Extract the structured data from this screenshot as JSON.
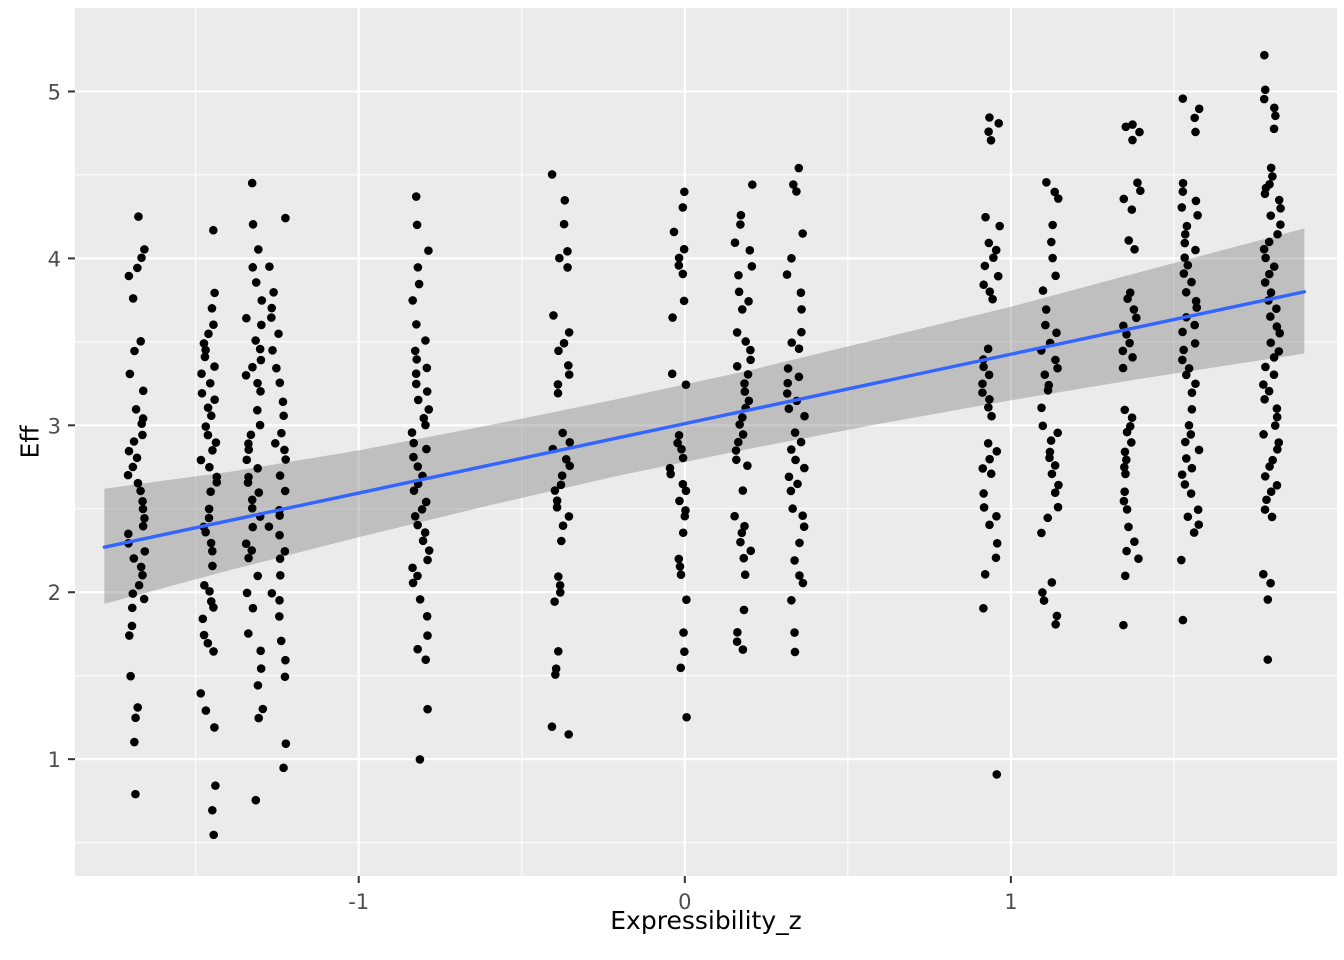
{
  "chart_data": {
    "type": "scatter",
    "title": "",
    "xlabel": "Expressibility_z",
    "ylabel": "Eff",
    "xlim": [
      -1.87,
      2.0
    ],
    "ylim": [
      0.3,
      5.5
    ],
    "xticks": [
      -1,
      0,
      1
    ],
    "xtick_labels": [
      "-1",
      "0",
      "1"
    ],
    "yticks": [
      1,
      2,
      3,
      4,
      5
    ],
    "ytick_labels": [
      "1",
      "2",
      "3",
      "4",
      "5"
    ],
    "xminor": [
      -1.5,
      -0.5,
      0.5,
      1.5
    ],
    "yminor": [
      0.5,
      1.5,
      2.5,
      3.5,
      4.5
    ],
    "grid": true,
    "legend": "none",
    "panel_bg": "#EBEBEB",
    "grid_color": "#FFFFFF",
    "point_color": "#000000",
    "line_color": "#3366FF",
    "band_color": "rgba(125,125,125,0.40)",
    "tick_color": "#333333",
    "tick_label_color": "#4D4D4D",
    "regression_line": {
      "x": [
        -1.78,
        0.0,
        1.9
      ],
      "y": [
        2.27,
        3.01,
        3.8
      ]
    },
    "confidence_band": [
      [
        -1.78,
        1.93,
        2.62
      ],
      [
        -1.4,
        2.13,
        2.72
      ],
      [
        -1.0,
        2.33,
        2.85
      ],
      [
        -0.6,
        2.52,
        3.0
      ],
      [
        -0.2,
        2.7,
        3.16
      ],
      [
        0.2,
        2.86,
        3.33
      ],
      [
        0.6,
        3.01,
        3.52
      ],
      [
        1.0,
        3.15,
        3.71
      ],
      [
        1.4,
        3.28,
        3.92
      ],
      [
        1.9,
        3.43,
        4.18
      ]
    ],
    "columns": [
      {
        "x": -1.68,
        "ys": [
          4.25,
          4.05,
          4.0,
          3.95,
          3.9,
          3.75,
          3.5,
          3.45,
          3.3,
          3.2,
          3.1,
          3.05,
          3.0,
          2.95,
          2.9,
          2.85,
          2.8,
          2.75,
          2.7,
          2.65,
          2.6,
          2.55,
          2.5,
          2.45,
          2.4,
          2.35,
          2.3,
          2.25,
          2.2,
          2.15,
          2.1,
          2.05,
          2.0,
          1.95,
          1.9,
          1.8,
          1.75,
          1.5,
          1.3,
          1.25,
          1.1,
          0.8
        ]
      },
      {
        "x": -1.46,
        "ys": [
          4.17,
          3.8,
          3.7,
          3.6,
          3.55,
          3.5,
          3.45,
          3.4,
          3.35,
          3.3,
          3.25,
          3.2,
          3.15,
          3.1,
          3.05,
          3.0,
          2.95,
          2.9,
          2.85,
          2.8,
          2.75,
          2.7,
          2.65,
          2.6,
          2.5,
          2.45,
          2.4,
          2.35,
          2.3,
          2.25,
          2.15,
          2.05,
          2.0,
          1.95,
          1.9,
          1.85,
          1.75,
          1.7,
          1.65,
          1.4,
          1.3,
          1.2,
          0.85,
          0.7,
          0.55
        ]
      },
      {
        "x": -1.32,
        "ys": [
          4.45,
          4.2,
          4.05,
          3.95,
          3.85,
          3.75,
          3.65,
          3.6,
          3.5,
          3.45,
          3.4,
          3.35,
          3.3,
          3.25,
          3.2,
          3.1,
          3.0,
          2.95,
          2.9,
          2.85,
          2.8,
          2.75,
          2.7,
          2.65,
          2.6,
          2.55,
          2.5,
          2.45,
          2.4,
          2.3,
          2.25,
          2.2,
          2.1,
          2.0,
          1.9,
          1.75,
          1.65,
          1.55,
          1.45,
          1.3,
          1.25,
          0.75
        ]
      },
      {
        "x": -1.25,
        "ys": [
          4.25,
          3.95,
          3.8,
          3.7,
          3.65,
          3.55,
          3.45,
          3.35,
          3.25,
          3.15,
          3.05,
          2.95,
          2.9,
          2.85,
          2.8,
          2.7,
          2.6,
          2.5,
          2.45,
          2.4,
          2.35,
          2.25,
          2.2,
          2.1,
          2.0,
          1.95,
          1.85,
          1.7,
          1.6,
          1.5,
          1.1,
          0.95
        ]
      },
      {
        "x": -0.81,
        "ys": [
          4.38,
          4.2,
          4.05,
          3.95,
          3.85,
          3.75,
          3.6,
          3.5,
          3.45,
          3.4,
          3.35,
          3.3,
          3.25,
          3.2,
          3.15,
          3.1,
          3.05,
          3.0,
          2.95,
          2.9,
          2.85,
          2.8,
          2.75,
          2.7,
          2.65,
          2.6,
          2.55,
          2.5,
          2.45,
          2.4,
          2.35,
          2.3,
          2.25,
          2.2,
          2.15,
          2.1,
          2.05,
          1.95,
          1.85,
          1.75,
          1.65,
          1.6,
          1.3,
          1.0
        ]
      },
      {
        "x": -0.38,
        "ys": [
          4.5,
          4.35,
          4.2,
          4.05,
          4.0,
          3.95,
          3.65,
          3.55,
          3.5,
          3.45,
          3.35,
          3.3,
          3.25,
          3.2,
          2.95,
          2.9,
          2.85,
          2.8,
          2.75,
          2.7,
          2.65,
          2.6,
          2.55,
          2.5,
          2.45,
          2.4,
          2.3,
          2.1,
          2.05,
          2.0,
          1.95,
          1.65,
          1.55,
          1.5,
          1.2,
          1.15
        ]
      },
      {
        "x": -0.02,
        "ys": [
          4.4,
          4.3,
          4.15,
          4.05,
          4.0,
          3.95,
          3.9,
          3.75,
          3.65,
          3.3,
          3.25,
          2.95,
          2.9,
          2.85,
          2.8,
          2.75,
          2.7,
          2.65,
          2.6,
          2.55,
          2.5,
          2.45,
          2.35,
          2.2,
          2.15,
          2.1,
          1.95,
          1.75,
          1.65,
          1.55,
          1.25
        ]
      },
      {
        "x": 0.18,
        "ys": [
          4.45,
          4.25,
          4.2,
          4.1,
          4.05,
          3.95,
          3.9,
          3.8,
          3.75,
          3.7,
          3.55,
          3.5,
          3.45,
          3.4,
          3.35,
          3.3,
          3.25,
          3.2,
          3.15,
          3.1,
          3.05,
          3.0,
          2.95,
          2.9,
          2.85,
          2.8,
          2.75,
          2.6,
          2.45,
          2.4,
          2.35,
          2.3,
          2.25,
          2.2,
          2.1,
          1.9,
          1.75,
          1.7,
          1.65
        ]
      },
      {
        "x": 0.34,
        "ys": [
          4.55,
          4.45,
          4.4,
          4.15,
          4.0,
          3.9,
          3.8,
          3.7,
          3.55,
          3.5,
          3.45,
          3.35,
          3.3,
          3.25,
          3.2,
          3.15,
          3.1,
          3.05,
          2.95,
          2.9,
          2.85,
          2.8,
          2.75,
          2.7,
          2.65,
          2.6,
          2.5,
          2.45,
          2.4,
          2.3,
          2.2,
          2.1,
          2.05,
          1.95,
          1.75,
          1.65
        ]
      },
      {
        "x": 0.94,
        "ys": [
          4.85,
          4.8,
          4.75,
          4.7,
          4.25,
          4.2,
          4.1,
          4.05,
          4.0,
          3.95,
          3.9,
          3.85,
          3.8,
          3.75,
          3.45,
          3.4,
          3.35,
          3.3,
          3.25,
          3.2,
          3.15,
          3.1,
          3.05,
          2.9,
          2.85,
          2.8,
          2.75,
          2.7,
          2.6,
          2.5,
          2.45,
          2.4,
          2.3,
          2.2,
          2.1,
          1.9,
          0.9
        ]
      },
      {
        "x": 1.12,
        "ys": [
          4.45,
          4.4,
          4.35,
          4.2,
          4.1,
          4.0,
          3.9,
          3.8,
          3.7,
          3.6,
          3.55,
          3.5,
          3.45,
          3.4,
          3.35,
          3.3,
          3.25,
          3.2,
          3.1,
          3.0,
          2.95,
          2.9,
          2.85,
          2.8,
          2.75,
          2.7,
          2.65,
          2.6,
          2.5,
          2.45,
          2.35,
          2.05,
          2.0,
          1.95,
          1.85,
          1.8
        ]
      },
      {
        "x": 1.37,
        "ys": [
          4.8,
          4.78,
          4.75,
          4.7,
          4.45,
          4.4,
          4.35,
          4.3,
          4.1,
          4.05,
          3.8,
          3.75,
          3.7,
          3.65,
          3.6,
          3.55,
          3.5,
          3.45,
          3.4,
          3.35,
          3.1,
          3.05,
          3.0,
          2.95,
          2.9,
          2.85,
          2.8,
          2.75,
          2.7,
          2.6,
          2.55,
          2.5,
          2.4,
          2.3,
          2.25,
          2.2,
          2.1,
          1.8
        ]
      },
      {
        "x": 1.55,
        "ys": [
          4.95,
          4.9,
          4.85,
          4.75,
          4.45,
          4.4,
          4.35,
          4.3,
          4.25,
          4.2,
          4.15,
          4.1,
          4.05,
          4.0,
          3.95,
          3.9,
          3.85,
          3.8,
          3.75,
          3.7,
          3.65,
          3.6,
          3.55,
          3.5,
          3.45,
          3.4,
          3.35,
          3.3,
          3.25,
          3.2,
          3.1,
          3.0,
          2.95,
          2.9,
          2.85,
          2.8,
          2.75,
          2.7,
          2.65,
          2.6,
          2.5,
          2.45,
          2.4,
          2.35,
          2.2,
          1.83
        ]
      },
      {
        "x": 1.8,
        "ys": [
          5.22,
          5.0,
          4.95,
          4.9,
          4.85,
          4.78,
          4.55,
          4.5,
          4.45,
          4.42,
          4.38,
          4.35,
          4.3,
          4.25,
          4.2,
          4.15,
          4.1,
          4.05,
          4.0,
          3.95,
          3.9,
          3.85,
          3.8,
          3.75,
          3.7,
          3.65,
          3.6,
          3.55,
          3.5,
          3.45,
          3.4,
          3.35,
          3.3,
          3.25,
          3.2,
          3.15,
          3.1,
          3.05,
          3.0,
          2.95,
          2.9,
          2.85,
          2.8,
          2.75,
          2.7,
          2.65,
          2.6,
          2.55,
          2.5,
          2.45,
          2.1,
          2.05,
          1.95,
          1.6
        ]
      }
    ]
  }
}
